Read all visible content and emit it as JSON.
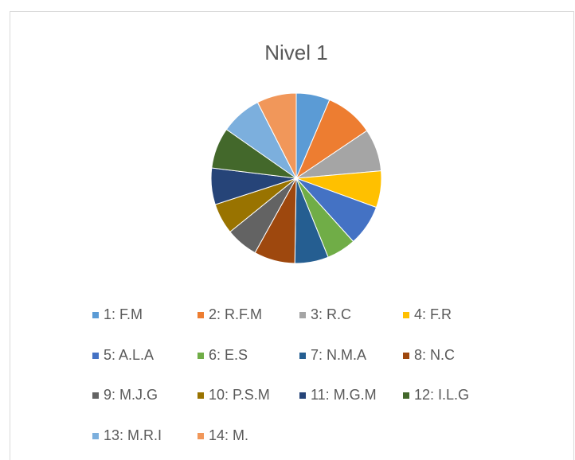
{
  "chart_data": {
    "type": "pie",
    "title": "Nivel 1",
    "categories": [
      "1: F.M",
      "2: R.F.M",
      "3: R.C",
      "4: F.R",
      "5: A.L.A",
      "6: E.S",
      "7: N.M.A",
      "8: N.C",
      "9: M.J.G",
      "10: P.S.M",
      "11: M.G.M",
      "12: I.L.G",
      "13: M.R.I",
      "14: M."
    ],
    "values": [
      23,
      33,
      29,
      25,
      28,
      20,
      23,
      28,
      22,
      21,
      25,
      28,
      28,
      27
    ],
    "colors": [
      "#5b9bd5",
      "#ed7d31",
      "#a5a5a5",
      "#ffc000",
      "#4472c4",
      "#70ad47",
      "#255e91",
      "#9e480e",
      "#636363",
      "#997300",
      "#264478",
      "#43682b",
      "#7cafdd",
      "#f1975a"
    ],
    "legend": "bottom"
  }
}
